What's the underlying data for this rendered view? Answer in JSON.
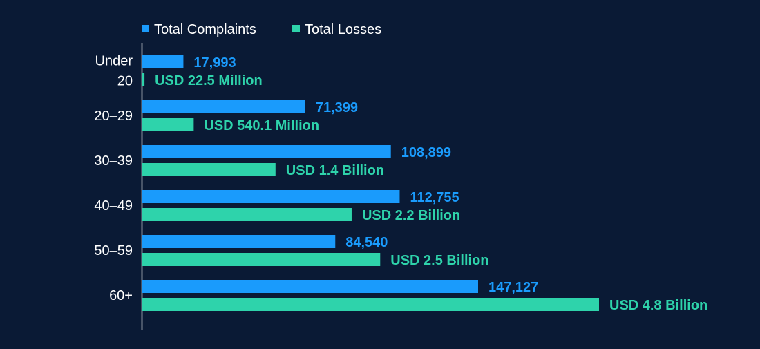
{
  "colors": {
    "background": "#0a1a35",
    "complaints": "#1a9bfc",
    "losses": "#2ed3ab",
    "axis": "#ffffff"
  },
  "chart_data": {
    "type": "bar",
    "orientation": "horizontal",
    "categories": [
      [
        "Under",
        "20"
      ],
      [
        "20–29"
      ],
      [
        "30–39"
      ],
      [
        "40–49"
      ],
      [
        "50–59"
      ],
      [
        "60+"
      ]
    ],
    "legend": {
      "placement": "top",
      "entries": [
        "Total Complaints",
        "Total Losses"
      ]
    },
    "series": [
      {
        "name": "Total Complaints",
        "unit": "complaints",
        "values": [
          17993,
          71399,
          108899,
          112755,
          84540,
          147127
        ],
        "labels": [
          "17,993",
          "71,399",
          "108,899",
          "112,755",
          "84,540",
          "147,127"
        ]
      },
      {
        "name": "Total Losses",
        "unit": "USD",
        "values": [
          22500000,
          540100000,
          1400000000,
          2200000000,
          2500000000,
          4800000000
        ],
        "labels": [
          "USD 22.5 Million",
          "USD 540.1 Million",
          "USD 1.4 Billion",
          "USD 2.2 Billion",
          "USD 2.5 Billion",
          "USD 4.8 Billion"
        ]
      }
    ],
    "grid": false
  }
}
